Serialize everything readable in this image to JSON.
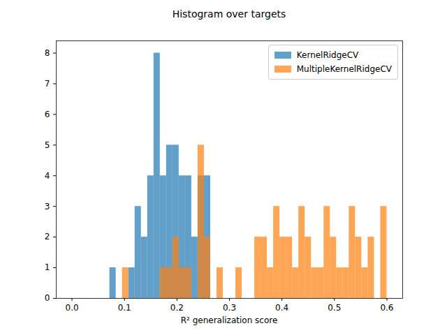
{
  "chart_data": {
    "type": "histogram",
    "title": "Histogram over targets",
    "xlabel": "R² generalization score",
    "bins": [
      0,
      0.012,
      0.024,
      0.036,
      0.048,
      0.06,
      0.072,
      0.084,
      0.096,
      0.108,
      0.12,
      0.132,
      0.144,
      0.156,
      0.168,
      0.18,
      0.192,
      0.204,
      0.216,
      0.228,
      0.24,
      0.252,
      0.264,
      0.276,
      0.288,
      0.3,
      0.312,
      0.324,
      0.336,
      0.348,
      0.36,
      0.372,
      0.384,
      0.396,
      0.408,
      0.42,
      0.432,
      0.444,
      0.456,
      0.468,
      0.48,
      0.492,
      0.504,
      0.516,
      0.528,
      0.54,
      0.552,
      0.564,
      0.576,
      0.588,
      0.6
    ],
    "series": [
      {
        "name": "KernelRidgeCV",
        "color": "#1f77b4",
        "values": [
          0,
          0,
          0,
          0,
          0,
          0,
          1,
          0,
          0,
          1,
          3,
          2,
          4,
          8,
          4,
          5,
          5,
          4,
          4,
          2,
          4,
          4,
          0,
          0,
          0,
          0,
          0,
          0,
          0,
          0,
          0,
          0,
          0,
          0,
          0,
          0,
          0,
          0,
          0,
          0,
          0,
          0,
          0,
          0,
          0,
          0,
          0,
          0,
          0,
          0
        ]
      },
      {
        "name": "MultipleKernelRidgeCV",
        "color": "#ff7f0e",
        "values": [
          0,
          0,
          0,
          0,
          0,
          0,
          0,
          0,
          1,
          0,
          0,
          0,
          0,
          0,
          1,
          1,
          2,
          1,
          1,
          0,
          5,
          2,
          0,
          1,
          0,
          0,
          1,
          0,
          0,
          2,
          2,
          1,
          3,
          2,
          2,
          1,
          3,
          2,
          1,
          1,
          3,
          2,
          1,
          1,
          3,
          2,
          1,
          2,
          0,
          3
        ]
      }
    ],
    "xlim": [
      -0.03,
      0.63
    ],
    "xticks": [
      {
        "value": 0,
        "label": "0.0"
      },
      {
        "value": 0.1,
        "label": "0.1"
      },
      {
        "value": 0.2,
        "label": "0.2"
      },
      {
        "value": 0.3,
        "label": "0.3"
      },
      {
        "value": 0.4,
        "label": "0.4"
      },
      {
        "value": 0.5,
        "label": "0.5"
      },
      {
        "value": 0.6,
        "label": "0.6"
      }
    ],
    "ylim": [
      0,
      8.4
    ],
    "yticks": [
      0,
      1,
      2,
      3,
      4,
      5,
      6,
      7,
      8
    ],
    "legend": "upper right",
    "grid": false
  }
}
